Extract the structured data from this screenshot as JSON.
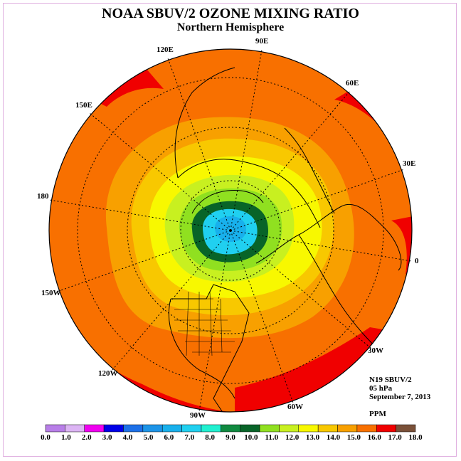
{
  "title": "NOAA SBUV/2 OZONE MIXING RATIO",
  "subtitle": "Northern Hemisphere",
  "longitude_labels": [
    "90E",
    "60E",
    "30E",
    "0",
    "30W",
    "60W",
    "90W",
    "120W",
    "150W",
    "180",
    "150E",
    "120E"
  ],
  "info": {
    "satellite": "N19 SBUV/2",
    "level": "05 hPa",
    "date": "September 7, 2013",
    "units": "PPM"
  },
  "colorbar": {
    "ticks": [
      "0.0",
      "1.0",
      "2.0",
      "3.0",
      "4.0",
      "5.0",
      "6.0",
      "7.0",
      "8.0",
      "9.0",
      "10.0",
      "11.0",
      "12.0",
      "13.0",
      "14.0",
      "15.0",
      "16.0",
      "17.0",
      "18.0"
    ],
    "colors": [
      "#b87ee8",
      "#dcb4f4",
      "#f000f0",
      "#0000e8",
      "#1c70e8",
      "#1c94e8",
      "#18b0ec",
      "#20d0f0",
      "#20f0d0",
      "#108a40",
      "#086428",
      "#90e020",
      "#c8f020",
      "#f8f800",
      "#f8c800",
      "#f8a000",
      "#f87000",
      "#f00000",
      "#7a5038"
    ]
  }
}
